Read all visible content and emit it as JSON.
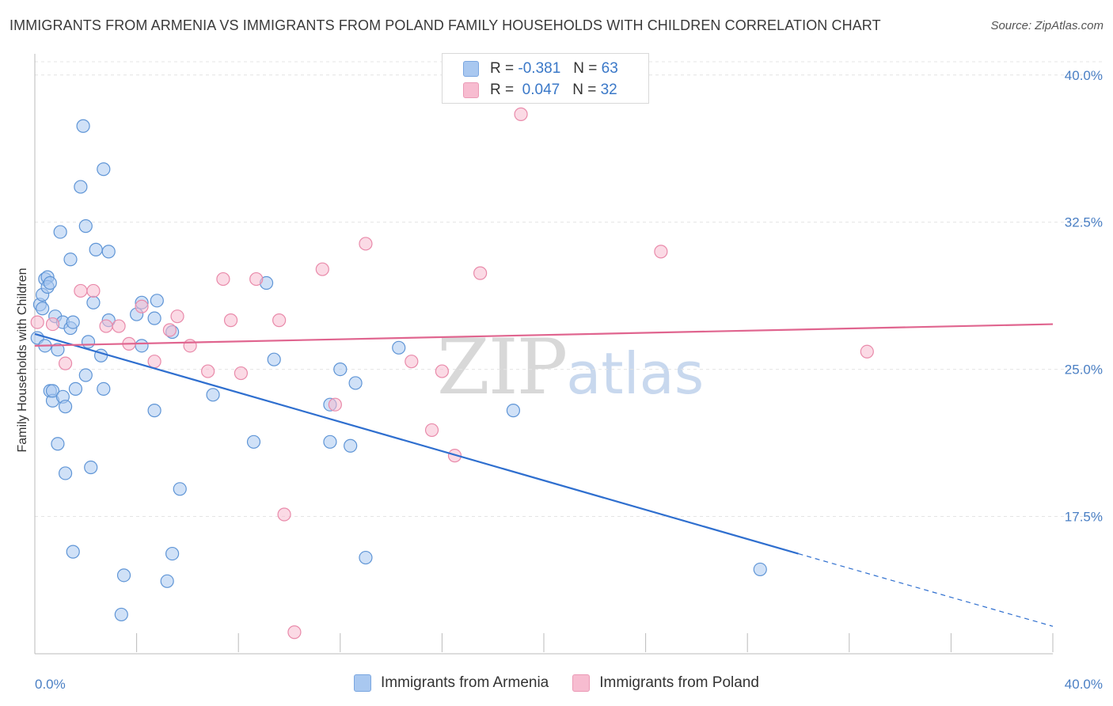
{
  "header": {
    "title": "IMMIGRANTS FROM ARMENIA VS IMMIGRANTS FROM POLAND FAMILY HOUSEHOLDS WITH CHILDREN CORRELATION CHART",
    "source": "Source: ZipAtlas.com"
  },
  "watermark": {
    "zip": "ZIP",
    "atlas": "atlas"
  },
  "legend": {
    "rows": [
      {
        "r_label": "R =",
        "r_value": "-0.381",
        "n_label": "N =",
        "n_value": "63",
        "color": "#a9c8f0"
      },
      {
        "r_label": "R =",
        "r_value": "0.047",
        "n_label": "N =",
        "n_value": "32",
        "color": "#f7bcd0"
      }
    ]
  },
  "chart_data": {
    "type": "scatter",
    "title": "IMMIGRANTS FROM ARMENIA VS IMMIGRANTS FROM POLAND FAMILY HOUSEHOLDS WITH CHILDREN CORRELATION CHART",
    "xlabel": "",
    "ylabel": "Family Households with Children",
    "xlim": [
      0,
      40
    ],
    "ylim": [
      10.5,
      41
    ],
    "x_ticks": [
      "0.0%",
      "40.0%"
    ],
    "y_ticks": [
      {
        "value": 17.5,
        "label": "17.5%"
      },
      {
        "value": 25.0,
        "label": "25.0%"
      },
      {
        "value": 32.5,
        "label": "32.5%"
      },
      {
        "value": 40.0,
        "label": "40.0%"
      }
    ],
    "grid": true,
    "legend_position": "top-center",
    "series": [
      {
        "name": "Immigrants from Armenia",
        "color": "#a9c8f0",
        "stroke": "#5f95d6",
        "trend_color": "#2f6fcf",
        "trend": {
          "x0": 0,
          "y0": 26.8,
          "x1": 30,
          "y1": 15.6,
          "dash_to_x": 40,
          "dash_to_y": 11.9
        },
        "points": [
          [
            0.1,
            26.6
          ],
          [
            0.2,
            28.3
          ],
          [
            0.3,
            28.1
          ],
          [
            0.3,
            28.8
          ],
          [
            0.4,
            29.6
          ],
          [
            0.4,
            26.2
          ],
          [
            0.5,
            29.7
          ],
          [
            0.5,
            29.2
          ],
          [
            0.6,
            29.4
          ],
          [
            0.6,
            23.9
          ],
          [
            0.7,
            23.4
          ],
          [
            0.7,
            23.9
          ],
          [
            0.8,
            27.7
          ],
          [
            0.9,
            21.2
          ],
          [
            0.9,
            26.0
          ],
          [
            1.0,
            32.0
          ],
          [
            1.1,
            23.6
          ],
          [
            1.1,
            27.4
          ],
          [
            1.2,
            23.1
          ],
          [
            1.2,
            19.7
          ],
          [
            1.4,
            30.6
          ],
          [
            1.4,
            27.1
          ],
          [
            1.5,
            27.4
          ],
          [
            1.5,
            15.7
          ],
          [
            1.6,
            24.0
          ],
          [
            1.8,
            34.3
          ],
          [
            1.9,
            37.4
          ],
          [
            2.0,
            24.7
          ],
          [
            2.0,
            32.3
          ],
          [
            2.1,
            26.4
          ],
          [
            2.2,
            20.0
          ],
          [
            2.3,
            28.4
          ],
          [
            2.4,
            31.1
          ],
          [
            2.6,
            25.7
          ],
          [
            2.7,
            35.2
          ],
          [
            2.7,
            24.0
          ],
          [
            2.9,
            31.0
          ],
          [
            2.9,
            27.5
          ],
          [
            3.4,
            12.5
          ],
          [
            3.5,
            14.5
          ],
          [
            4.0,
            27.8
          ],
          [
            4.2,
            28.4
          ],
          [
            4.2,
            26.2
          ],
          [
            4.7,
            27.6
          ],
          [
            4.7,
            22.9
          ],
          [
            4.8,
            28.5
          ],
          [
            5.2,
            14.2
          ],
          [
            5.4,
            15.6
          ],
          [
            5.4,
            26.9
          ],
          [
            5.7,
            18.9
          ],
          [
            7.0,
            23.7
          ],
          [
            8.6,
            21.3
          ],
          [
            9.1,
            29.4
          ],
          [
            9.4,
            25.5
          ],
          [
            11.6,
            23.2
          ],
          [
            11.6,
            21.3
          ],
          [
            12.0,
            25.0
          ],
          [
            12.4,
            21.1
          ],
          [
            12.6,
            24.3
          ],
          [
            13.0,
            15.4
          ],
          [
            14.3,
            26.1
          ],
          [
            18.8,
            22.9
          ],
          [
            28.5,
            14.8
          ]
        ]
      },
      {
        "name": "Immigrants from Poland",
        "color": "#f7bcd0",
        "stroke": "#e98aaa",
        "trend_color": "#e0658f",
        "trend": {
          "x0": 0,
          "y0": 26.2,
          "x1": 40,
          "y1": 27.3
        },
        "points": [
          [
            0.1,
            27.4
          ],
          [
            0.7,
            27.3
          ],
          [
            1.2,
            25.3
          ],
          [
            1.8,
            29.0
          ],
          [
            2.3,
            29.0
          ],
          [
            2.8,
            27.2
          ],
          [
            3.3,
            27.2
          ],
          [
            3.7,
            26.3
          ],
          [
            4.2,
            28.2
          ],
          [
            4.7,
            25.4
          ],
          [
            5.3,
            27.0
          ],
          [
            5.6,
            27.7
          ],
          [
            6.1,
            26.2
          ],
          [
            6.8,
            24.9
          ],
          [
            7.4,
            29.6
          ],
          [
            7.7,
            27.5
          ],
          [
            8.1,
            24.8
          ],
          [
            8.7,
            29.6
          ],
          [
            9.6,
            27.5
          ],
          [
            9.8,
            17.6
          ],
          [
            10.2,
            11.6
          ],
          [
            11.3,
            30.1
          ],
          [
            11.8,
            23.2
          ],
          [
            13.0,
            31.4
          ],
          [
            14.8,
            25.4
          ],
          [
            15.6,
            21.9
          ],
          [
            16.0,
            24.9
          ],
          [
            16.5,
            20.6
          ],
          [
            17.5,
            29.9
          ],
          [
            19.1,
            38.0
          ],
          [
            24.6,
            31.0
          ],
          [
            32.7,
            25.9
          ]
        ]
      }
    ]
  }
}
